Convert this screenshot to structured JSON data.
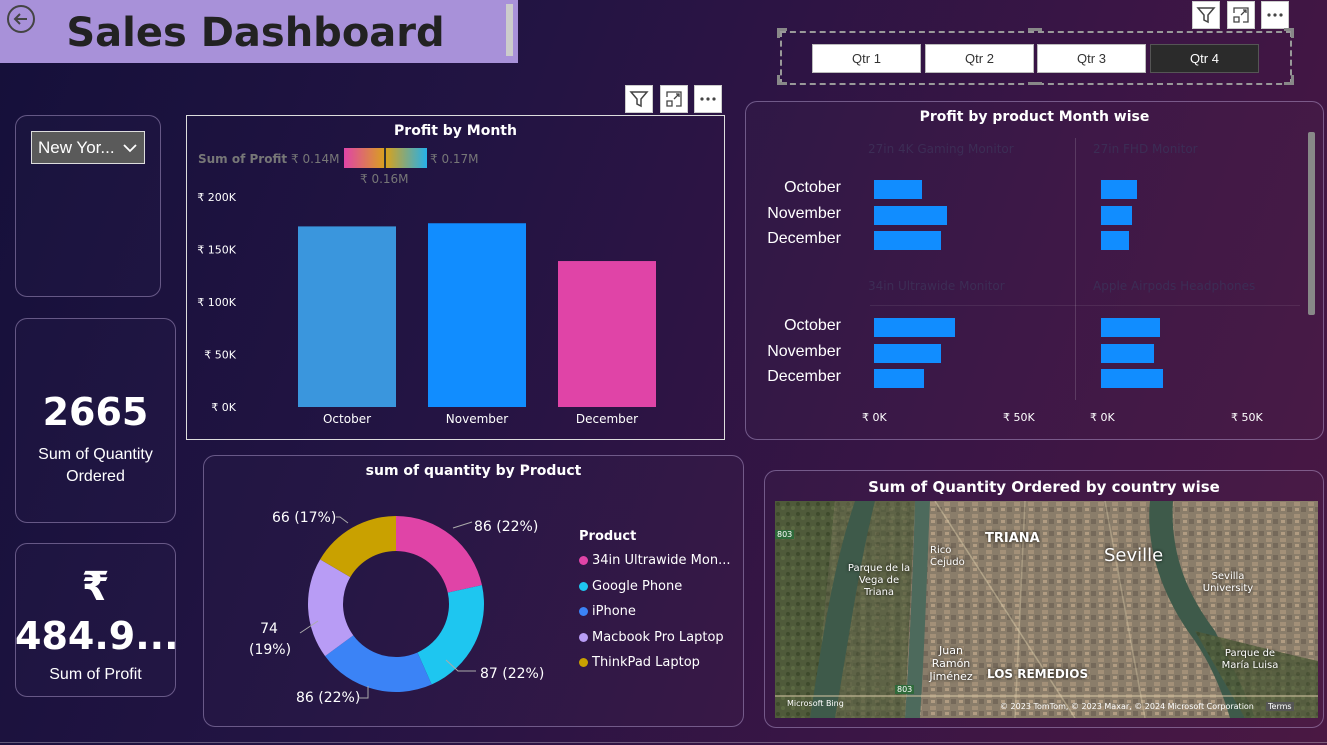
{
  "header": {
    "title": "Sales Dashboard",
    "back_icon": "back-arrow-icon"
  },
  "toolbar": {
    "filter_icon": "filter-icon",
    "focus_icon": "focus-mode-icon",
    "more_icon": "more-options-icon"
  },
  "quarters": [
    "Qtr 1",
    "Qtr 2",
    "Qtr 3",
    "Qtr 4"
  ],
  "selected_quarter": "Qtr 4",
  "city_slicer": {
    "value": "New Yor..."
  },
  "kpi_quantity": {
    "value": "2665",
    "label": "Sum of Quantity Ordered"
  },
  "kpi_profit": {
    "currency": "₹",
    "value": "484.9...",
    "label": "Sum of Profit"
  },
  "profit_by_month": {
    "legend_label": "Sum of Profit",
    "legend_min": "₹ 0.14M",
    "legend_mid": "₹ 0.16M",
    "legend_max": "₹ 0.17M"
  },
  "profit_by_product": {
    "title": "Profit by product Month wise",
    "panels": [
      {
        "product": "27in 4K Gaming Monitor"
      },
      {
        "product": "27in FHD Monitor"
      },
      {
        "product": "34in Ultrawide Monitor"
      },
      {
        "product": "Apple Airpods Headphones"
      }
    ],
    "axis_ticks": [
      "₹ 0K",
      "₹ 50K"
    ]
  },
  "quantity_by_product": {
    "legend_title": "Product",
    "slice_labels": [
      "86 (22%)",
      "87 (22%)",
      "86 (22%)",
      "74 (19%)",
      "66 (17%)"
    ]
  },
  "map": {
    "title": "Sum of Quantity Ordered by country wise",
    "place_labels": [
      "TRIANA",
      "Seville",
      "Rico Cejudo",
      "Parque de la Vega de Triana",
      "Sevilla University",
      "Juan Ramón Jiménez",
      "LOS REMEDIOS",
      "Parque de María Luisa"
    ],
    "road_labels": [
      "803",
      "803"
    ],
    "attribution_left": "Microsoft Bing",
    "attribution_right": "© 2023 TomTom, © 2023 Maxar, © 2024 Microsoft Corporation",
    "terms": "Terms"
  },
  "colors": {
    "accent_blue": "#118dff",
    "accent_pink": "#e044a7",
    "header_bg": "#a891d9"
  },
  "chart_data": [
    {
      "type": "bar",
      "title": "Profit by Month",
      "categories": [
        "October",
        "November",
        "December"
      ],
      "values": [
        172000,
        175000,
        139000
      ],
      "ylim": [
        0,
        200000
      ],
      "yticks": [
        "₹ 0K",
        "₹ 50K",
        "₹ 100K",
        "₹ 150K",
        "₹ 200K"
      ],
      "colors": [
        "#3a96dd",
        "#118dff",
        "#e044a7"
      ]
    },
    {
      "type": "bar",
      "title": "Profit by product Month wise",
      "categories": [
        "October",
        "November",
        "December"
      ],
      "series": [
        {
          "name": "27in 4K Gaming Monitor",
          "values": [
            17000,
            26000,
            24000
          ]
        },
        {
          "name": "27in FHD Monitor",
          "values": [
            13000,
            11000,
            10000
          ]
        },
        {
          "name": "34in Ultrawide Monitor",
          "values": [
            29000,
            24000,
            18000
          ]
        },
        {
          "name": "Apple Airpods Headphones",
          "values": [
            21000,
            19000,
            22000
          ]
        }
      ],
      "xlim": [
        0,
        50000
      ]
    },
    {
      "type": "pie",
      "title": "sum of quantity by Product",
      "categories": [
        "34in Ultrawide Mon...",
        "Google Phone",
        "iPhone",
        "Macbook Pro Laptop",
        "ThinkPad Laptop"
      ],
      "values": [
        86,
        87,
        86,
        74,
        66
      ],
      "colors": [
        "#e044a7",
        "#1ec6f0",
        "#3b83f6",
        "#b89cf5",
        "#c9a100"
      ]
    }
  ]
}
